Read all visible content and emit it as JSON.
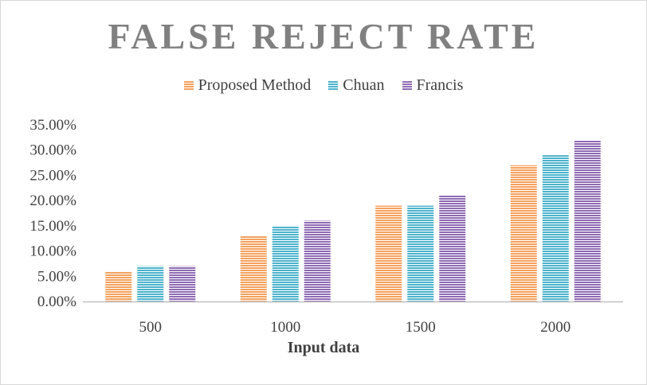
{
  "chart_data": {
    "type": "bar",
    "title": "FALSE REJECT RATE",
    "xlabel": "Input data",
    "ylabel": "",
    "categories": [
      "500",
      "1000",
      "1500",
      "2000"
    ],
    "series": [
      {
        "name": "Proposed Method",
        "values": [
          6,
          13,
          19,
          27
        ],
        "color": "#f4a15d"
      },
      {
        "name": "Chuan",
        "values": [
          7,
          15,
          19,
          29
        ],
        "color": "#4bb3cc"
      },
      {
        "name": "Francis",
        "values": [
          7,
          16,
          21,
          32
        ],
        "color": "#8e6bb3"
      }
    ],
    "ylim": [
      0,
      35
    ],
    "yticks": [
      "0.00%",
      "5.00%",
      "10.00%",
      "15.00%",
      "20.00%",
      "25.00%",
      "30.00%",
      "35.00%"
    ],
    "grid": false,
    "legend_position": "top"
  }
}
